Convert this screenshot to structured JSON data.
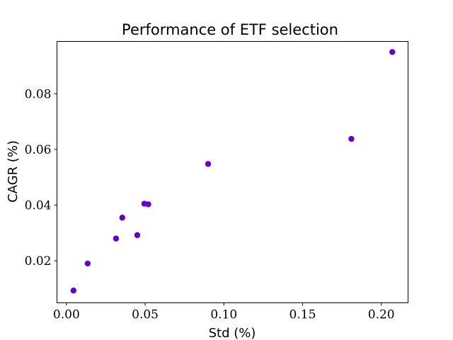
{
  "chart_data": {
    "type": "scatter",
    "title": "Performance of ETF selection",
    "xlabel": "Std (%)",
    "ylabel": "CAGR (%)",
    "xlim": [
      -0.006,
      0.217
    ],
    "ylim": [
      0.0049,
      0.0988
    ],
    "xticks": [
      0.0,
      0.05,
      0.1,
      0.15,
      0.2
    ],
    "xtick_labels": [
      "0.00",
      "0.05",
      "0.10",
      "0.15",
      "0.20"
    ],
    "yticks": [
      0.02,
      0.04,
      0.06,
      0.08
    ],
    "ytick_labels": [
      "0.02",
      "0.04",
      "0.06",
      "0.08"
    ],
    "grid": false,
    "marker_color": "#6600cc",
    "points": [
      {
        "x": 0.0045,
        "y": 0.0093
      },
      {
        "x": 0.0135,
        "y": 0.019
      },
      {
        "x": 0.0315,
        "y": 0.028
      },
      {
        "x": 0.0355,
        "y": 0.0355
      },
      {
        "x": 0.045,
        "y": 0.0292
      },
      {
        "x": 0.0495,
        "y": 0.0405
      },
      {
        "x": 0.052,
        "y": 0.0403
      },
      {
        "x": 0.09,
        "y": 0.0548
      },
      {
        "x": 0.181,
        "y": 0.0638
      },
      {
        "x": 0.207,
        "y": 0.095
      }
    ]
  }
}
